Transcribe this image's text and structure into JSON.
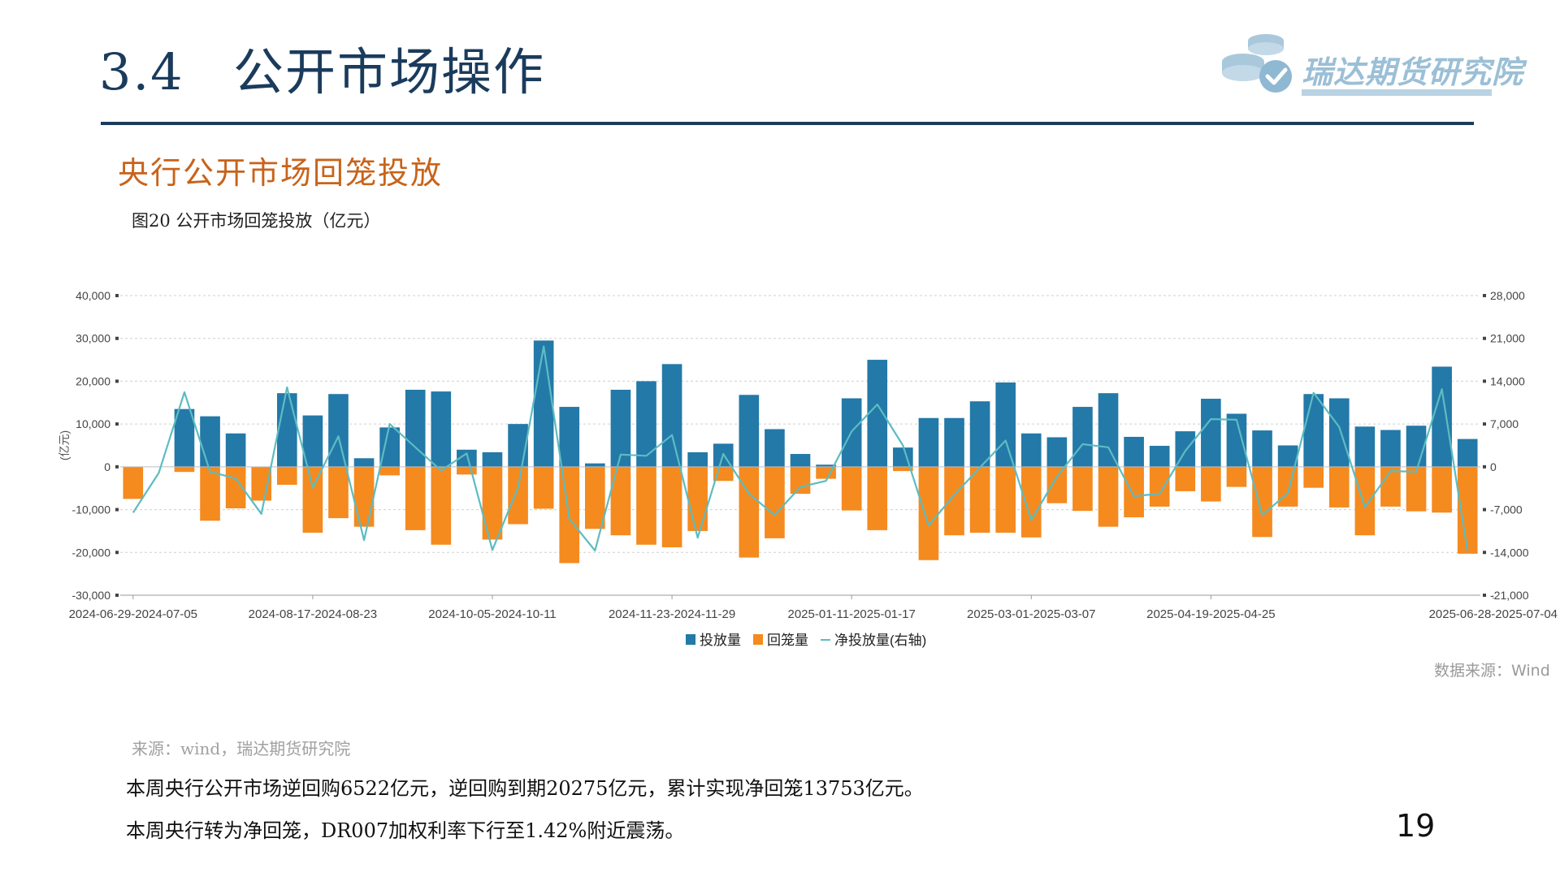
{
  "header": {
    "section_number": "3.4",
    "section_title": "公开市场操作",
    "logo_text": "瑞达期货研究院"
  },
  "subtitle": "央行公开市场回笼投放",
  "figure_caption": "图20  公开市场回笼投放（亿元）",
  "chart_data": {
    "type": "bar",
    "title": "",
    "ylabel": "(亿元)",
    "ylim": [
      -30000,
      40000
    ],
    "yticks": [
      40000,
      30000,
      20000,
      10000,
      0,
      -10000,
      -20000,
      -30000
    ],
    "ytick_labels": [
      "40,000",
      "30,000",
      "20,000",
      "10,000",
      "0",
      "-10,000",
      "-20,000",
      "-30,000"
    ],
    "y2lim": [
      -21000,
      28000
    ],
    "y2ticks": [
      28000,
      21000,
      14000,
      7000,
      0,
      -7000,
      -14000,
      -21000
    ],
    "y2tick_labels": [
      "28,000",
      "21,000",
      "14,000",
      "7,000",
      "0",
      "-7,000",
      "-14,000",
      "-21,000"
    ],
    "xtick_labels": [
      {
        "index": 0,
        "label": "2024-06-29-2024-07-05"
      },
      {
        "index": 7,
        "label": "2024-08-17-2024-08-23"
      },
      {
        "index": 14,
        "label": "2024-10-05-2024-10-11"
      },
      {
        "index": 21,
        "label": "2024-11-23-2024-11-29"
      },
      {
        "index": 28,
        "label": "2025-01-11-2025-01-17"
      },
      {
        "index": 35,
        "label": "2025-03-01-2025-03-07"
      },
      {
        "index": 42,
        "label": "2025-04-19-2025-04-25"
      },
      {
        "index": 53,
        "label": "2025-06-28-2025-07-04"
      }
    ],
    "series": [
      {
        "name": "投放量",
        "type": "bar",
        "color": "#2379a8",
        "values": [
          0,
          0,
          13500,
          11800,
          7800,
          0,
          17200,
          12000,
          17000,
          2000,
          9200,
          18000,
          17600,
          4000,
          3400,
          10000,
          29500,
          14000,
          800,
          18000,
          20000,
          24000,
          3400,
          5400,
          16800,
          8800,
          3000,
          500,
          16000,
          25000,
          4500,
          11400,
          11400,
          15300,
          19700,
          7800,
          6900,
          14000,
          17200,
          7000,
          4900,
          8300,
          15900,
          12400,
          8500,
          5000,
          17000,
          16000,
          9400,
          8600,
          9600,
          23400,
          6500
        ]
      },
      {
        "name": "回笼量",
        "type": "bar",
        "color": "#f58a1f",
        "values": [
          -7500,
          0,
          -1200,
          -12600,
          -9700,
          -7900,
          -4200,
          -15400,
          -12000,
          -14000,
          -2000,
          -14800,
          -18200,
          -1800,
          -17000,
          -13400,
          -9800,
          -22500,
          -14500,
          -16000,
          -18200,
          -18800,
          -15000,
          -3300,
          -21200,
          -16700,
          -6300,
          -2800,
          -10200,
          -14800,
          -1000,
          -21800,
          -16000,
          -15400,
          -15400,
          -16500,
          -8500,
          -10300,
          -14000,
          -11800,
          -9300,
          -5700,
          -8100,
          -4700,
          -16400,
          -9300,
          -4900,
          -9500,
          -16000,
          -9300,
          -10400,
          -10700,
          -20300
        ]
      },
      {
        "name": "净投放量(右轴)",
        "type": "line",
        "axis": "right",
        "color": "#5cbcc2",
        "values": [
          -7500,
          -1000,
          12200,
          -800,
          -1900,
          -7700,
          13000,
          -3400,
          5000,
          -12000,
          7000,
          3200,
          -600,
          2200,
          -13600,
          -3400,
          19700,
          -8500,
          -13700,
          2000,
          1800,
          5200,
          -11600,
          2100,
          -4400,
          -7900,
          -3300,
          -2300,
          5800,
          10200,
          3500,
          -9600,
          -4600,
          -100,
          4300,
          -8700,
          -1600,
          3700,
          3200,
          -4800,
          -4400,
          2600,
          7800,
          7700,
          -7900,
          -4300,
          12100,
          6500,
          -6600,
          -700,
          -800,
          12700,
          -13800
        ]
      }
    ]
  },
  "data_source": "数据来源：Wind",
  "source_note": "来源：wind，瑞达期货研究院",
  "summary": [
    "本周央行公开市场逆回购6522亿元，逆回购到期20275亿元，累计实现净回笼13753亿元。",
    "本周央行转为净回笼，DR007加权利率下行至1.42%附近震荡。"
  ],
  "page_number": "19",
  "colors": {
    "title": "#1b3b5c",
    "subtitle": "#c8631a",
    "bar_injection": "#2379a8",
    "bar_withdrawal": "#f58a1f",
    "net_line": "#5cbcc2"
  }
}
